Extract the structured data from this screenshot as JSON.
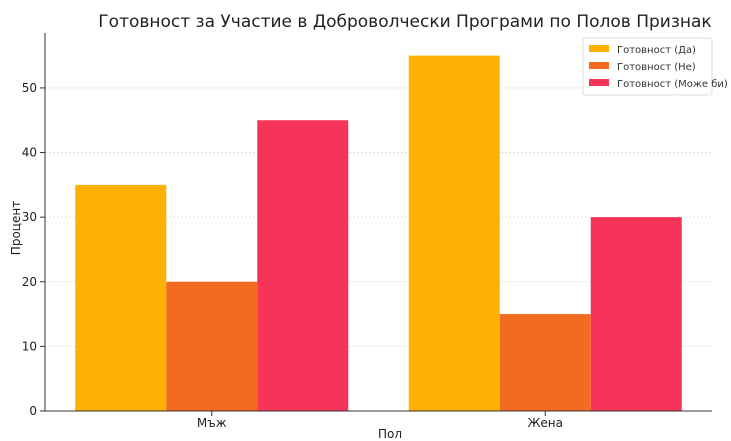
{
  "chart_data": {
    "type": "bar",
    "title": "Готовност за Участие в Доброволчески Програми по Полов Признак",
    "xlabel": "Пол",
    "ylabel": "Процент",
    "categories": [
      "Мъж",
      "Жена"
    ],
    "series": [
      {
        "name": "Готовност (Да)",
        "values": [
          35,
          55
        ],
        "color": "#FFB000"
      },
      {
        "name": "Готовност (Не)",
        "values": [
          20,
          15
        ],
        "color": "#F26B21"
      },
      {
        "name": "Готовност (Може би)",
        "values": [
          45,
          30
        ],
        "color": "#F6345A"
      }
    ],
    "ylim": [
      0,
      58.5
    ],
    "yticks": [
      0,
      10,
      20,
      30,
      40,
      50
    ],
    "grid": true,
    "legend_position": "top-right"
  }
}
